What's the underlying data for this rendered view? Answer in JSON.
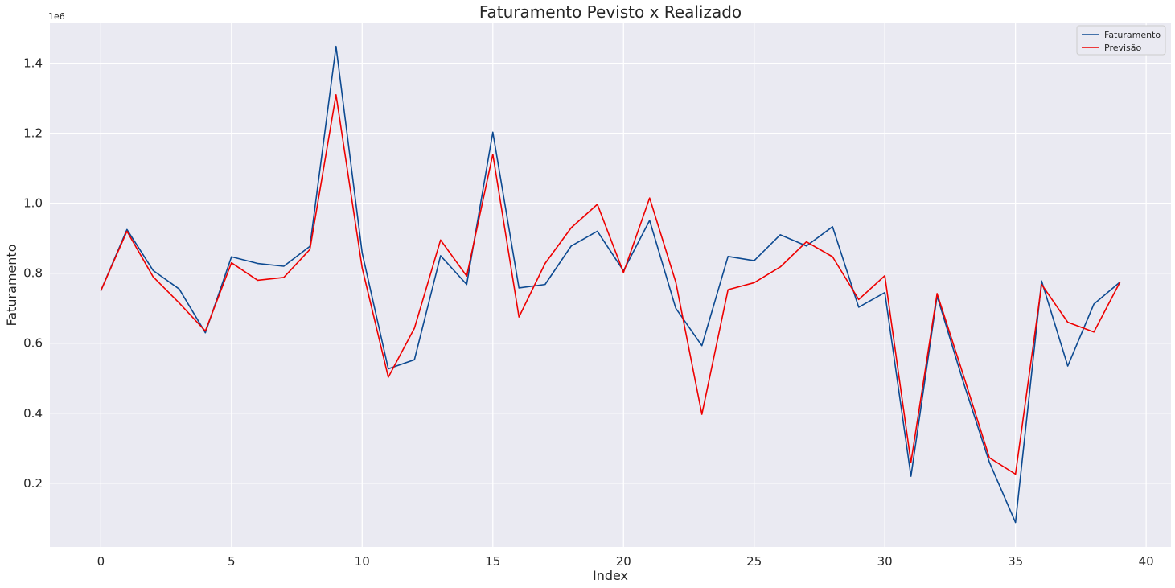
{
  "chart_data": {
    "type": "line",
    "title": "Faturamento Pevisto x Realizado",
    "xlabel": "Index",
    "ylabel": "Faturamento",
    "y_offset_label": "1e6",
    "xlim": [
      -1.95,
      40.95
    ],
    "ylim": [
      0.018,
      1.514
    ],
    "x_ticks": [
      0,
      5,
      10,
      15,
      20,
      25,
      30,
      35,
      40
    ],
    "y_ticks": [
      0.2,
      0.4,
      0.6,
      0.8,
      1.0,
      1.2,
      1.4
    ],
    "y_tick_labels": [
      "0.2",
      "0.4",
      "0.6",
      "0.8",
      "1.0",
      "1.2",
      "1.4"
    ],
    "grid": true,
    "legend_position": "top-right",
    "x": [
      0,
      1,
      2,
      3,
      4,
      5,
      6,
      7,
      8,
      9,
      10,
      11,
      12,
      13,
      14,
      15,
      16,
      17,
      18,
      19,
      20,
      21,
      22,
      23,
      24,
      25,
      26,
      27,
      28,
      29,
      30,
      31,
      32,
      33,
      34,
      35,
      36,
      37,
      38,
      39
    ],
    "series": [
      {
        "name": "Faturamento",
        "color": "#0d4a91",
        "values": [
          0.75,
          0.925,
          0.808,
          0.755,
          0.63,
          0.847,
          0.828,
          0.82,
          0.877,
          1.448,
          0.858,
          0.527,
          0.553,
          0.85,
          0.768,
          1.203,
          0.758,
          0.768,
          0.878,
          0.92,
          0.807,
          0.951,
          0.7,
          0.593,
          0.848,
          0.836,
          0.91,
          0.878,
          0.933,
          0.703,
          0.745,
          0.22,
          0.735,
          0.49,
          0.26,
          0.088,
          0.778,
          0.535,
          0.712,
          0.775
        ]
      },
      {
        "name": "Previsão",
        "color": "#ee0000",
        "values": [
          0.75,
          0.92,
          0.79,
          0.715,
          0.635,
          0.83,
          0.78,
          0.788,
          0.868,
          1.31,
          0.815,
          0.503,
          0.643,
          0.895,
          0.792,
          1.14,
          0.675,
          0.828,
          0.93,
          0.997,
          0.802,
          1.015,
          0.775,
          0.397,
          0.753,
          0.773,
          0.818,
          0.89,
          0.847,
          0.725,
          0.793,
          0.26,
          0.742,
          0.51,
          0.273,
          0.226,
          0.768,
          0.66,
          0.632,
          0.775
        ]
      }
    ]
  }
}
